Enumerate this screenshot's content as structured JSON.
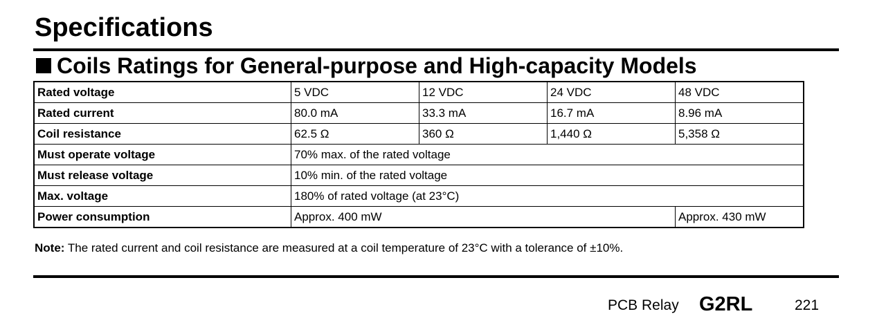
{
  "header": {
    "title": "Specifications",
    "section_title": "Coils Ratings for General-purpose and High-capacity Models"
  },
  "table": {
    "rows": [
      {
        "label": "Rated voltage",
        "cells": [
          "5 VDC",
          "12 VDC",
          "24 VDC",
          "48 VDC"
        ]
      },
      {
        "label": "Rated current",
        "cells": [
          "80.0 mA",
          "33.3 mA",
          "16.7 mA",
          "8.96 mA"
        ]
      },
      {
        "label": "Coil resistance",
        "cells": [
          "62.5 Ω",
          "360 Ω",
          "1,440 Ω",
          "5,358 Ω"
        ]
      },
      {
        "label": "Must operate voltage",
        "cells": [
          "70% max. of the rated voltage"
        ]
      },
      {
        "label": "Must release voltage",
        "cells": [
          "10% min. of the rated voltage"
        ]
      },
      {
        "label": "Max. voltage",
        "cells": [
          "180% of rated voltage (at 23°C)"
        ]
      },
      {
        "label": "Power consumption",
        "cells": [
          "Approx. 400 mW",
          "Approx. 430 mW"
        ]
      }
    ]
  },
  "note": {
    "label": "Note:",
    "text": "The rated current and coil resistance are measured at a coil temperature of 23°C with a tolerance of ±10%."
  },
  "footer": {
    "product_line": "PCB Relay",
    "model": "G2RL",
    "page_number": "221"
  }
}
